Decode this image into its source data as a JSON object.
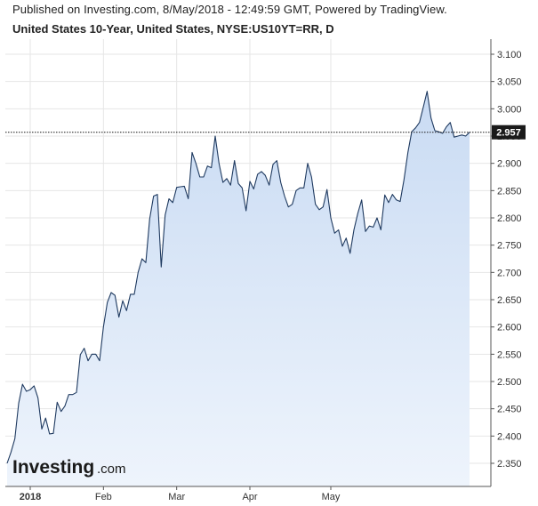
{
  "header": {
    "published": "Published on Investing.com, 8/May/2018 - 12:49:59 GMT, Powered by TradingView.",
    "instrument": "United States 10-Year, United States, NYSE:US10YT=RR, D"
  },
  "logo": {
    "brand": "Investing",
    "suffix": ".com"
  },
  "colors": {
    "line": "#1f3a60",
    "fill_top": "#c9dbf3",
    "fill_bottom": "#eef4fc",
    "grid": "#e6e6e6",
    "label_bg": "#1a1a1a"
  },
  "chart_data": {
    "type": "area",
    "title": "United States 10-Year, United States, NYSE:US10YT=RR, D",
    "ylim": [
      2.3,
      3.12
    ],
    "y_ticks": [
      "2.350",
      "2.400",
      "2.450",
      "2.500",
      "2.550",
      "2.600",
      "2.650",
      "2.700",
      "2.750",
      "2.800",
      "2.850",
      "2.900",
      "2.950",
      "3.000",
      "3.050",
      "3.100"
    ],
    "x_ticks": [
      {
        "label": "2018",
        "index": 6,
        "bold": true
      },
      {
        "label": "Feb",
        "index": 25,
        "bold": false
      },
      {
        "label": "Mar",
        "index": 44,
        "bold": false
      },
      {
        "label": "Apr",
        "index": 63,
        "bold": false
      },
      {
        "label": "May",
        "index": 84,
        "bold": false
      }
    ],
    "last_value": "2.957",
    "last_value_num": 2.957,
    "grid": true,
    "values": [
      2.35,
      2.37,
      2.395,
      2.46,
      2.495,
      2.482,
      2.485,
      2.492,
      2.47,
      2.413,
      2.433,
      2.404,
      2.405,
      2.462,
      2.445,
      2.455,
      2.476,
      2.476,
      2.48,
      2.549,
      2.561,
      2.538,
      2.55,
      2.55,
      2.538,
      2.6,
      2.645,
      2.663,
      2.658,
      2.618,
      2.648,
      2.63,
      2.66,
      2.66,
      2.7,
      2.725,
      2.718,
      2.798,
      2.84,
      2.843,
      2.71,
      2.805,
      2.835,
      2.828,
      2.856,
      2.857,
      2.858,
      2.835,
      2.92,
      2.9,
      2.875,
      2.875,
      2.895,
      2.892,
      2.95,
      2.9,
      2.865,
      2.872,
      2.86,
      2.905,
      2.863,
      2.855,
      2.813,
      2.867,
      2.853,
      2.88,
      2.885,
      2.878,
      2.86,
      2.898,
      2.905,
      2.865,
      2.84,
      2.82,
      2.825,
      2.85,
      2.855,
      2.855,
      2.9,
      2.875,
      2.825,
      2.815,
      2.82,
      2.852,
      2.8,
      2.772,
      2.778,
      2.748,
      2.763,
      2.735,
      2.778,
      2.808,
      2.833,
      2.775,
      2.785,
      2.783,
      2.8,
      2.778,
      2.842,
      2.828,
      2.843,
      2.833,
      2.83,
      2.87,
      2.92,
      2.958,
      2.965,
      2.975,
      3.003,
      3.032,
      2.983,
      2.96,
      2.958,
      2.955,
      2.967,
      2.975,
      2.948,
      2.95,
      2.952,
      2.95,
      2.957
    ]
  }
}
